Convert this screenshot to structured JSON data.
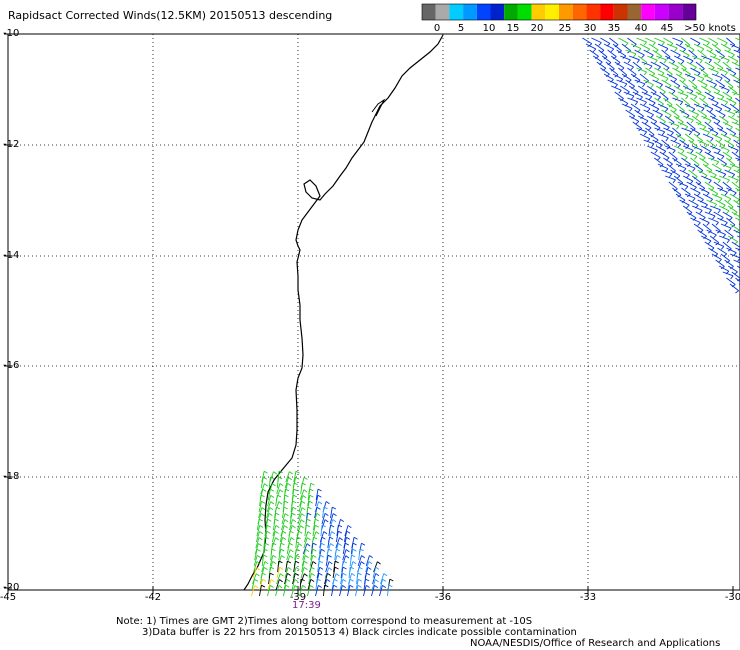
{
  "title": "Rapidsact Corrected Winds(12.5KM) 20150513 descending",
  "colorbar": {
    "colors": [
      "#666666",
      "#aaaaaa",
      "#00ccff",
      "#0099ff",
      "#0044ff",
      "#0022cc",
      "#00aa00",
      "#00dd00",
      "#ffcc00",
      "#ffee00",
      "#ff9900",
      "#ff6600",
      "#ff3300",
      "#ff0000",
      "#cc3300",
      "#996633",
      "#ff00ff",
      "#cc00ff",
      "#9900cc",
      "#660099"
    ],
    "labels": [
      "0",
      "5",
      "10",
      "15",
      "20",
      "25",
      "30",
      "35",
      "40",
      "45",
      ">50 knots"
    ]
  },
  "axes": {
    "lon_ticks": [
      "-45",
      "-42",
      "-39",
      "-36",
      "-33",
      "-30"
    ],
    "lat_ticks": [
      "-10",
      "-12",
      "-14",
      "-16",
      "-18",
      "-20"
    ],
    "lon_range": [
      -45,
      -30
    ],
    "lat_range": [
      -20,
      -10
    ]
  },
  "time_label": "17:39",
  "notes": {
    "line1": "Note: 1) Times are GMT 2)Times along bottom correspond to measurement at -10S",
    "line2": "3)Data buffer is 22 hrs from 20150513 4) Black circles indicate possible contamination",
    "credit": "NOAA/NESDIS/Office of Research and Applications"
  },
  "wind_colors": {
    "blue": "#0033dd",
    "green": "#22cc22",
    "cyan": "#2299ff",
    "yellow": "#ffcc00",
    "black": "#000000"
  }
}
